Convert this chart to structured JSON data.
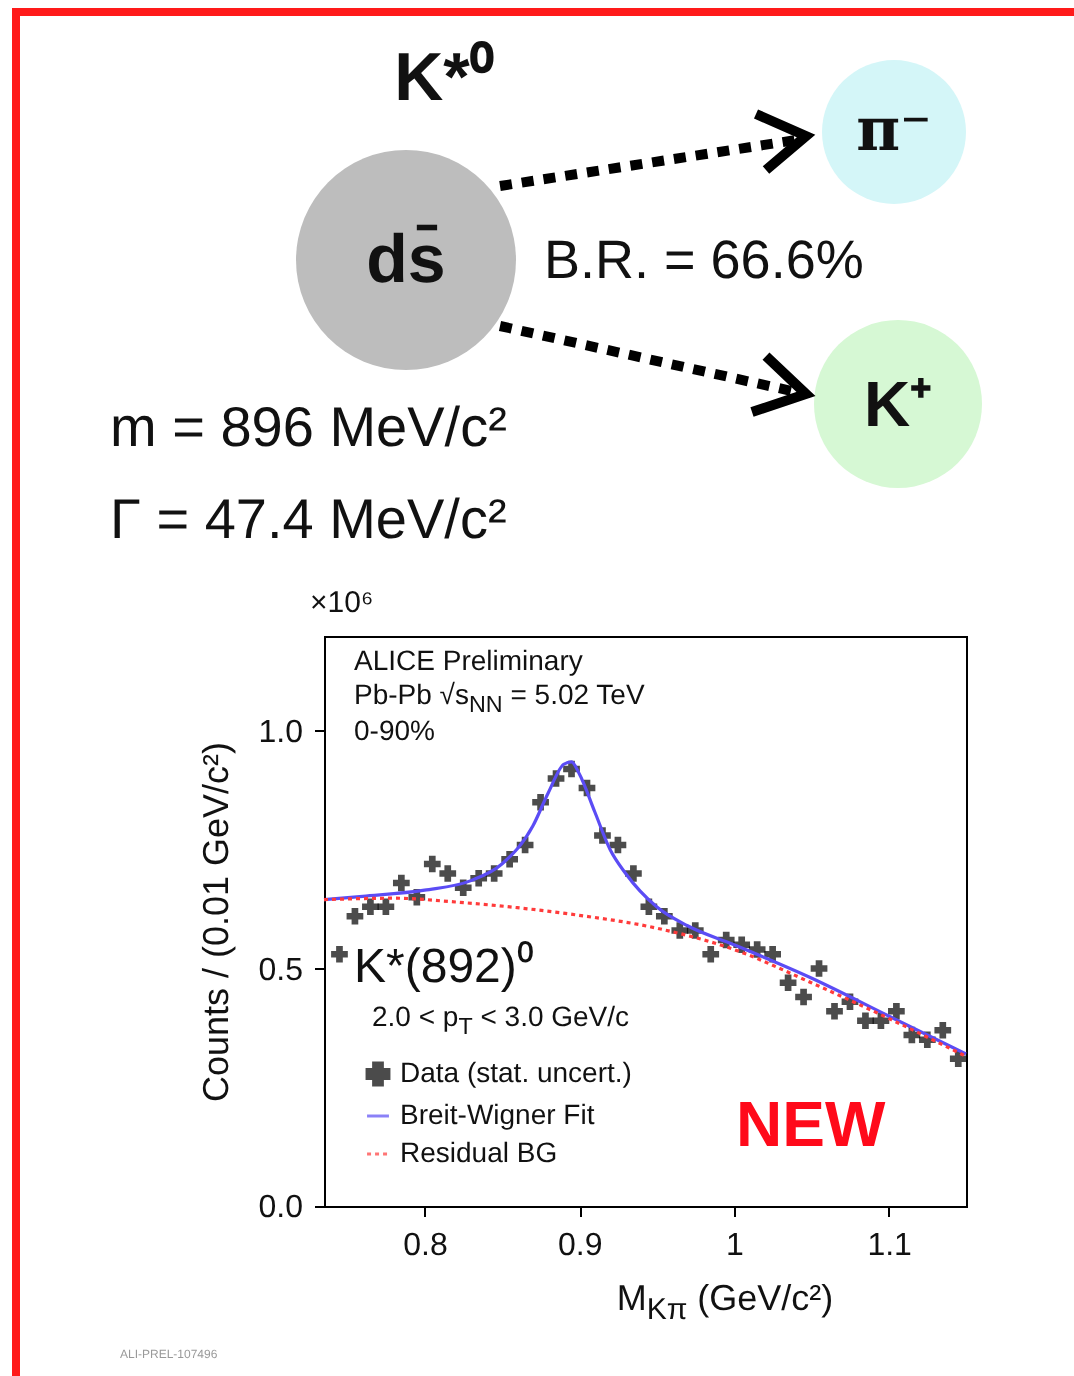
{
  "chart_data": {
    "type": "scatter",
    "xlabel": "M$_{Kπ}$ (GeV/c²)",
    "ylabel": "Counts / (0.01 GeV/c²)",
    "annotations": [
      "K*⁰",
      "ds̄",
      "π⁻",
      "K⁺",
      "B.R. = 66.6%",
      "m = 896 MeV/c²",
      "Γ = 47.4 MeV/c²",
      "×10⁶",
      "ALICE Preliminary",
      "Pb-Pb √s$_{NN}$ = 5.02 TeV",
      "0-90%",
      "K*(892)⁰",
      "2.0 < p$_{T}$ < 3.0 GeV/c",
      "NEW",
      "ALI-PREL-107496"
    ],
    "xlim": [
      0.735,
      1.15
    ],
    "ylim": [
      0,
      1.2
    ],
    "xticks": [
      0.8,
      0.9,
      1,
      1.1
    ],
    "yticks": [
      {
        "value": 0,
        "label": "0.0"
      },
      {
        "value": 0.5,
        "label": "0.5"
      },
      {
        "value": 1,
        "label": "1.0"
      }
    ],
    "grid": false,
    "legend": "bottom left",
    "series": [
      {
        "name": "Data (stat. uncert.)",
        "marker": "cross",
        "color": "#000000",
        "x": [
          0.745,
          0.755,
          0.765,
          0.775,
          0.785,
          0.795,
          0.805,
          0.815,
          0.825,
          0.835,
          0.845,
          0.855,
          0.865,
          0.875,
          0.885,
          0.895,
          0.905,
          0.915,
          0.925,
          0.935,
          0.945,
          0.955,
          0.965,
          0.975,
          0.985,
          0.995,
          1.005,
          1.015,
          1.025,
          1.035,
          1.045,
          1.055,
          1.065,
          1.075,
          1.085,
          1.095,
          1.105,
          1.115,
          1.125,
          1.135,
          1.145
        ],
        "values": [
          0.53,
          0.61,
          0.63,
          0.63,
          0.68,
          0.65,
          0.72,
          0.7,
          0.67,
          0.69,
          0.7,
          0.73,
          0.76,
          0.85,
          0.9,
          0.92,
          0.88,
          0.78,
          0.76,
          0.7,
          0.63,
          0.61,
          0.58,
          0.58,
          0.53,
          0.56,
          0.55,
          0.54,
          0.53,
          0.47,
          0.44,
          0.5,
          0.41,
          0.43,
          0.39,
          0.39,
          0.41,
          0.36,
          0.35,
          0.37,
          0.31
        ]
      },
      {
        "name": "Breit-Wigner Fit",
        "type": "line",
        "color": "#5b4cf5",
        "x": [
          0.735,
          0.76,
          0.8,
          0.83,
          0.85,
          0.87,
          0.88,
          0.89,
          0.895,
          0.9,
          0.91,
          0.92,
          0.93,
          0.95,
          0.97,
          1.0,
          1.05,
          1.1,
          1.15
        ],
        "values": [
          0.645,
          0.652,
          0.665,
          0.685,
          0.72,
          0.8,
          0.87,
          0.93,
          0.935,
          0.91,
          0.83,
          0.75,
          0.7,
          0.63,
          0.59,
          0.55,
          0.48,
          0.4,
          0.32
        ]
      },
      {
        "name": "Residual BG",
        "type": "line",
        "line_style": "dotted",
        "color": "#ff3b3b",
        "x": [
          0.735,
          0.78,
          0.82,
          0.86,
          0.9,
          0.95,
          1.0,
          1.05,
          1.1,
          1.15
        ],
        "values": [
          0.645,
          0.648,
          0.64,
          0.628,
          0.612,
          0.585,
          0.54,
          0.47,
          0.395,
          0.315
        ]
      }
    ]
  }
}
